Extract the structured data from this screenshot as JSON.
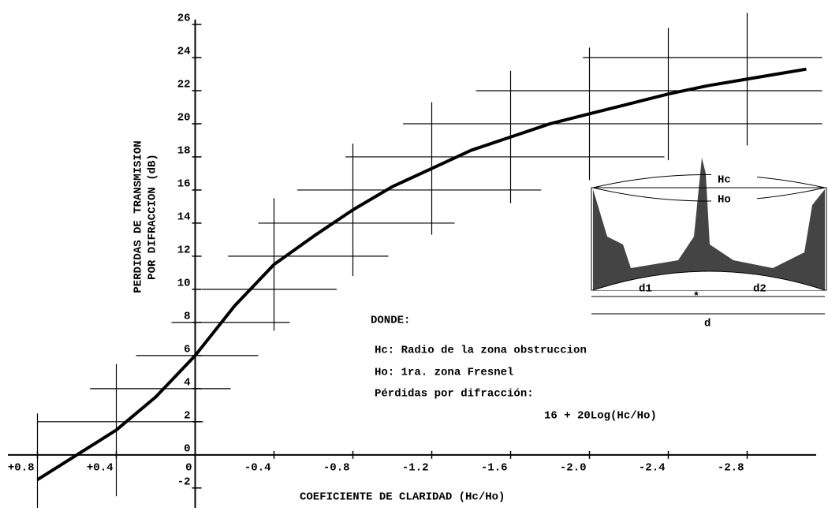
{
  "chart_data": {
    "type": "line",
    "ylabel": [
      "PERDIDAS DE TRANSMISION",
      "POR DIFRACCION (dB)"
    ],
    "xlabel": "COEFICIENTE DE CLARIDAD (Hc/Ho)",
    "x": [
      0.8,
      0.6,
      0.4,
      0.2,
      0,
      -0.2,
      -0.4,
      -0.6,
      -0.8,
      -1.0,
      -1.2,
      -1.4,
      -1.6,
      -1.8,
      -2.0,
      -2.2,
      -2.4,
      -2.6,
      -2.8,
      -3.0,
      -3.1
    ],
    "series": [
      {
        "color": "#000000",
        "values": [
          -1.5,
          0,
          1.5,
          3.5,
          6,
          9,
          11.5,
          13.2,
          14.8,
          16.2,
          17.3,
          18.4,
          19.2,
          20,
          20.6,
          21.2,
          21.8,
          22.3,
          22.7,
          23.1,
          23.3
        ]
      }
    ],
    "xlim": [
      0.95,
      -3.15
    ],
    "ylim": [
      -3.2,
      27
    ],
    "xticks": [
      {
        "value": 0.8,
        "label": "+0.8"
      },
      {
        "value": 0.4,
        "label": "+0.4"
      },
      0,
      -0.4,
      -0.8,
      -1.2,
      -1.6,
      {
        "value": -2,
        "label": "-2.0"
      },
      -2.4,
      -2.8
    ],
    "yticks": [
      -2,
      0,
      2,
      4,
      6,
      8,
      10,
      12,
      14,
      16,
      18,
      20,
      22,
      24,
      26
    ],
    "grid": true,
    "annotations": {
      "title": "DONDE:",
      "lines": [
        "Hc: Radio de la zona obstruccion",
        "Ho: 1ra. zona Fresnel",
        "Pérdidas por difracción:",
        "16 + 20Log(Hc/Ho)"
      ],
      "diagram": {
        "hc": "Hc",
        "ho": "Ho",
        "d1": "d1",
        "d2": "d2",
        "d": "d"
      }
    }
  }
}
